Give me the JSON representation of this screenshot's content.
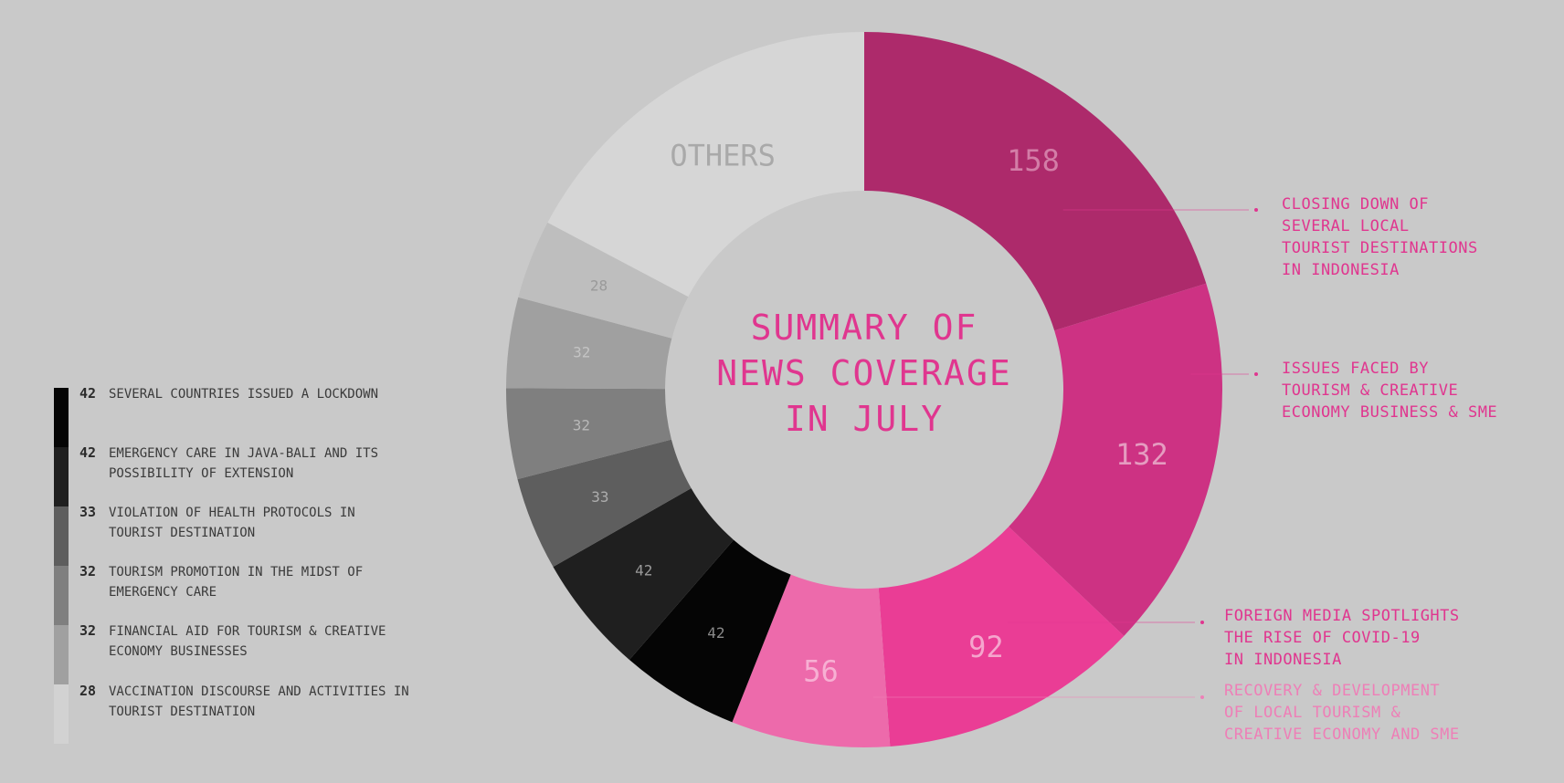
{
  "chart_data": {
    "type": "pie",
    "title": "SUMMARY OF NEWS COVERAGE IN JULY",
    "title_lines": [
      "SUMMARY OF",
      "NEWS COVERAGE",
      "IN JULY"
    ],
    "colors": {
      "background": "#c9c9c9",
      "accent": "#e0368f",
      "legend_text": "#3a3a3a",
      "light_callout_text": "#ee7fb7"
    },
    "slices": [
      {
        "value": 158,
        "label": "158",
        "color": "#ad2a6b",
        "label_color": "#d37da7"
      },
      {
        "value": 132,
        "label": "132",
        "color": "#cd3283",
        "label_color": "#e59cc0"
      },
      {
        "value": 92,
        "label": "92",
        "color": "#ea3d95",
        "label_color": "#f5a5cd"
      },
      {
        "value": 56,
        "label": "56",
        "color": "#ed6aab",
        "label_color": "#f7b0d3"
      },
      {
        "value": 42,
        "label": "42",
        "color": "#050505",
        "label_color": "#8a8a8a"
      },
      {
        "value": 42,
        "label": "42",
        "color": "#1f1f1f",
        "label_color": "#9a9a9a"
      },
      {
        "value": 33,
        "label": "33",
        "color": "#5e5e5e",
        "label_color": "#adadad"
      },
      {
        "value": 32,
        "label": "32",
        "color": "#7f7f7f",
        "label_color": "#b8b8b8"
      },
      {
        "value": 32,
        "label": "32",
        "color": "#a0a0a0",
        "label_color": "#c4c4c4"
      },
      {
        "value": 28,
        "label": "28",
        "color": "#bebebe",
        "label_color": "#9a9a9a"
      },
      {
        "value": 135,
        "label": "OTHERS",
        "color": "#d6d6d6",
        "label_color": "#a9a9a9"
      }
    ],
    "callouts": [
      {
        "slice": 0,
        "color": "#e0368f",
        "lines": [
          "CLOSING DOWN OF",
          "SEVERAL LOCAL",
          "TOURIST DESTINATIONS",
          "IN INDONESIA"
        ]
      },
      {
        "slice": 1,
        "color": "#e0368f",
        "lines": [
          "ISSUES FACED BY",
          "TOURISM & CREATIVE",
          "ECONOMY BUSINESS & SME"
        ]
      },
      {
        "slice": 2,
        "color": "#e0368f",
        "lines": [
          "FOREIGN MEDIA SPOTLIGHTS",
          "THE RISE OF COVID-19",
          "IN INDONESIA"
        ]
      },
      {
        "slice": 3,
        "color": "#ee7fb7",
        "lines": [
          "RECOVERY & DEVELOPMENT",
          "OF LOCAL TOURISM &",
          "CREATIVE ECONOMY AND SME"
        ]
      }
    ],
    "legend": [
      {
        "value": "42",
        "lines": [
          "SEVERAL COUNTRIES ISSUED A LOCKDOWN"
        ],
        "color": "#050505"
      },
      {
        "value": "42",
        "lines": [
          "EMERGENCY CARE IN JAVA-BALI AND ITS",
          "POSSIBILITY OF EXTENSION"
        ],
        "color": "#1f1f1f"
      },
      {
        "value": "33",
        "lines": [
          "VIOLATION OF HEALTH PROTOCOLS IN",
          "TOURIST DESTINATION"
        ],
        "color": "#5e5e5e"
      },
      {
        "value": "32",
        "lines": [
          "TOURISM PROMOTION IN THE MIDST OF",
          "EMERGENCY CARE"
        ],
        "color": "#7f7f7f"
      },
      {
        "value": "32",
        "lines": [
          "FINANCIAL AID FOR TOURISM & CREATIVE",
          "ECONOMY BUSINESSES"
        ],
        "color": "#a0a0a0"
      },
      {
        "value": "28",
        "lines": [
          "VACCINATION DISCOURSE AND ACTIVITIES IN",
          "TOURIST DESTINATION"
        ],
        "color": "#d2d2d2"
      }
    ],
    "legend_placement": "left"
  }
}
